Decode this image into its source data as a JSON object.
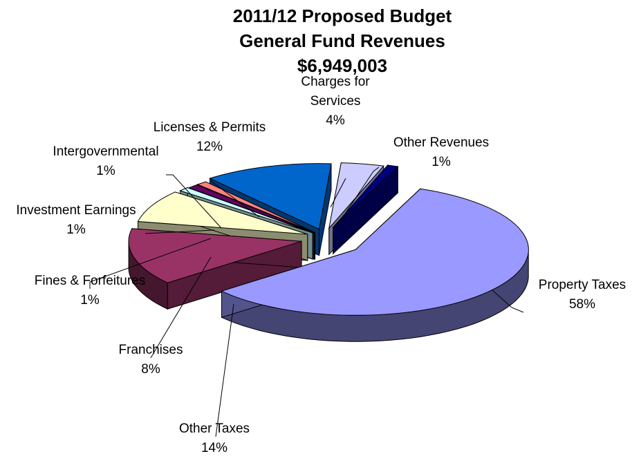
{
  "chart_data": {
    "type": "pie",
    "title": "2011/12 Proposed Budget",
    "subtitle": "General Fund Revenues",
    "total": "$6,949,003",
    "slices": [
      {
        "name": "Property Taxes",
        "pct_label": "58%",
        "value": 58,
        "color": "#9999ff"
      },
      {
        "name": "Other Taxes",
        "pct_label": "14%",
        "value": 14,
        "color": "#993366"
      },
      {
        "name": "Franchises",
        "pct_label": "8%",
        "value": 8,
        "color": "#ffffcc"
      },
      {
        "name": "Fines & Forfeitures",
        "pct_label": "1%",
        "value": 1,
        "color": "#ccffff"
      },
      {
        "name": "Investment Earnings",
        "pct_label": "1%",
        "value": 1,
        "color": "#660066"
      },
      {
        "name": "Intergovernmental",
        "pct_label": "1%",
        "value": 1,
        "color": "#ff8080"
      },
      {
        "name": "Licenses & Permits",
        "pct_label": "12%",
        "value": 12,
        "color": "#0066cc"
      },
      {
        "name": "Charges for Services",
        "name_lines": [
          "Charges for",
          "Services"
        ],
        "pct_label": "4%",
        "value": 4,
        "color": "#ccccff"
      },
      {
        "name": "Other Revenues",
        "pct_label": "1%",
        "value": 1,
        "color": "#000080"
      }
    ]
  }
}
